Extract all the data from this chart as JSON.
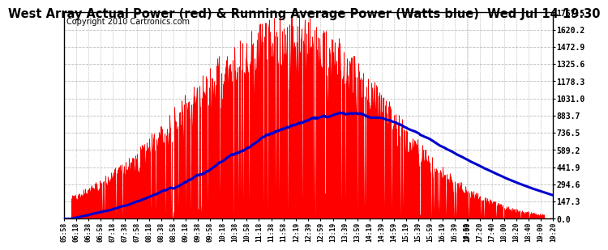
{
  "title": "West Array Actual Power (red) & Running Average Power (Watts blue)  Wed Jul 14 19:30",
  "copyright": "Copyright 2010 Cartronics.com",
  "yticks": [
    0.0,
    147.3,
    294.6,
    441.9,
    589.2,
    736.5,
    883.7,
    1031.0,
    1178.3,
    1325.6,
    1472.9,
    1620.2,
    1767.5
  ],
  "ymax": 1767.5,
  "bar_color": "#ff0000",
  "avg_color": "#0000cc",
  "bg_color": "#ffffff",
  "grid_color": "#bbbbbb",
  "title_fontsize": 10.5,
  "copyright_fontsize": 7,
  "x_labels": [
    "05:58",
    "06:18",
    "06:38",
    "06:58",
    "07:18",
    "07:38",
    "07:58",
    "08:18",
    "08:38",
    "08:58",
    "09:18",
    "09:38",
    "09:58",
    "10:18",
    "10:38",
    "10:58",
    "11:18",
    "11:38",
    "11:58",
    "12:19",
    "12:39",
    "12:59",
    "13:19",
    "13:39",
    "13:59",
    "14:19",
    "14:39",
    "14:59",
    "15:19",
    "15:39",
    "15:59",
    "16:19",
    "16:39",
    "16:59",
    "17:00",
    "17:20",
    "17:40",
    "18:00",
    "18:20",
    "18:40",
    "19:00",
    "19:20"
  ]
}
